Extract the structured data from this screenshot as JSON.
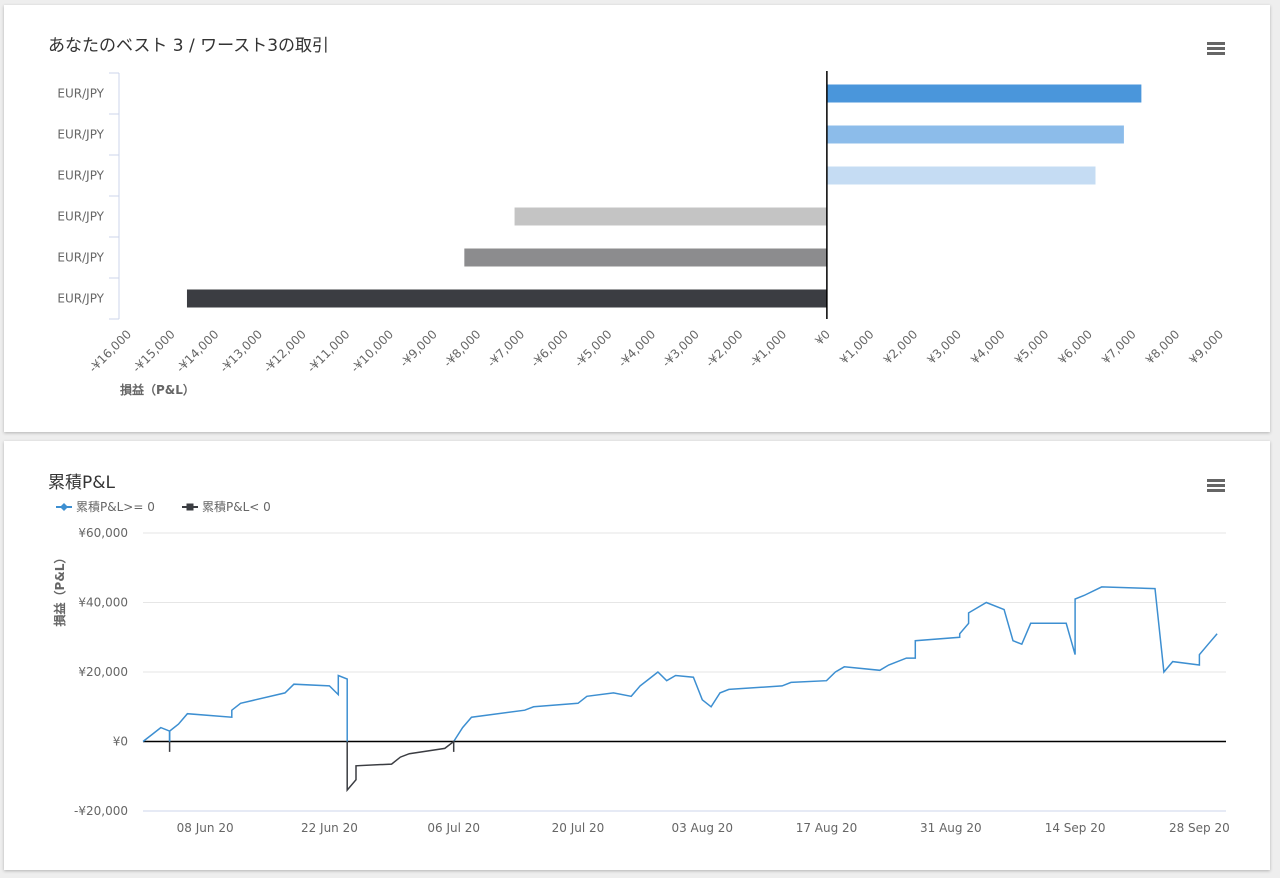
{
  "chart_data": [
    {
      "type": "bar",
      "orientation": "horizontal",
      "title": "あなたのベスト 3 / ワースト3の取引",
      "categories": [
        "EUR/JPY",
        "EUR/JPY",
        "EUR/JPY",
        "EUR/JPY",
        "EUR/JPY",
        "EUR/JPY"
      ],
      "values": [
        7200,
        6800,
        6150,
        -7150,
        -8300,
        -14650
      ],
      "colors": [
        "#4a96db",
        "#8cbcea",
        "#c5dcf3",
        "#c4c4c4",
        "#8c8c8e",
        "#3b3d42"
      ],
      "xlabel": "損益（P&L）",
      "xlim": [
        -16000,
        9000
      ],
      "xticks": [
        {
          "value": -16000,
          "label": "-¥16,000"
        },
        {
          "value": -15000,
          "label": "-¥15,000"
        },
        {
          "value": -14000,
          "label": "-¥14,000"
        },
        {
          "value": -13000,
          "label": "-¥13,000"
        },
        {
          "value": -12000,
          "label": "-¥12,000"
        },
        {
          "value": -11000,
          "label": "-¥11,000"
        },
        {
          "value": -10000,
          "label": "-¥10,000"
        },
        {
          "value": -9000,
          "label": "-¥9,000"
        },
        {
          "value": -8000,
          "label": "-¥8,000"
        },
        {
          "value": -7000,
          "label": "-¥7,000"
        },
        {
          "value": -6000,
          "label": "-¥6,000"
        },
        {
          "value": -5000,
          "label": "-¥5,000"
        },
        {
          "value": -4000,
          "label": "-¥4,000"
        },
        {
          "value": -3000,
          "label": "-¥3,000"
        },
        {
          "value": -2000,
          "label": "-¥2,000"
        },
        {
          "value": -1000,
          "label": "-¥1,000"
        },
        {
          "value": 0,
          "label": "¥0"
        },
        {
          "value": 1000,
          "label": "¥1,000"
        },
        {
          "value": 2000,
          "label": "¥2,000"
        },
        {
          "value": 3000,
          "label": "¥3,000"
        },
        {
          "value": 4000,
          "label": "¥4,000"
        },
        {
          "value": 5000,
          "label": "¥5,000"
        },
        {
          "value": 6000,
          "label": "¥6,000"
        },
        {
          "value": 7000,
          "label": "¥7,000"
        },
        {
          "value": 8000,
          "label": "¥8,000"
        },
        {
          "value": 9000,
          "label": "¥9,000"
        }
      ]
    },
    {
      "type": "line",
      "title": "累積P&L",
      "ylabel": "損益（P&L）",
      "legend": "top-left",
      "grid": true,
      "x": [
        "2020-06-01",
        "2020-06-02",
        "2020-06-03",
        "2020-06-04",
        "2020-06-04",
        "2020-06-04",
        "2020-06-04",
        "2020-06-04",
        "2020-06-05",
        "2020-06-06",
        "2020-06-11",
        "2020-06-11",
        "2020-06-12",
        "2020-06-17",
        "2020-06-18",
        "2020-06-22",
        "2020-06-23",
        "2020-06-23",
        "2020-06-24",
        "2020-06-24",
        "2020-06-24",
        "2020-06-25",
        "2020-06-25",
        "2020-06-29",
        "2020-06-30",
        "2020-07-01",
        "2020-07-05",
        "2020-07-06",
        "2020-07-06",
        "2020-07-06",
        "2020-07-07",
        "2020-07-08",
        "2020-07-14",
        "2020-07-15",
        "2020-07-20",
        "2020-07-21",
        "2020-07-24",
        "2020-07-26",
        "2020-07-27",
        "2020-07-28",
        "2020-07-29",
        "2020-07-30",
        "2020-07-31",
        "2020-08-02",
        "2020-08-03",
        "2020-08-04",
        "2020-08-05",
        "2020-08-06",
        "2020-08-12",
        "2020-08-13",
        "2020-08-17",
        "2020-08-18",
        "2020-08-19",
        "2020-08-23",
        "2020-08-24",
        "2020-08-26",
        "2020-08-27",
        "2020-08-27",
        "2020-09-01",
        "2020-09-01",
        "2020-09-02",
        "2020-09-02",
        "2020-09-04",
        "2020-09-06",
        "2020-09-07",
        "2020-09-08",
        "2020-09-09",
        "2020-09-13",
        "2020-09-14",
        "2020-09-14",
        "2020-09-15",
        "2020-09-17",
        "2020-09-23",
        "2020-09-24",
        "2020-09-25",
        "2020-09-28",
        "2020-09-28",
        "2020-09-29",
        "2020-09-30"
      ],
      "series": [
        {
          "name": "累積P&L>= 0",
          "color": "#3d8fd1",
          "marker": "diamond",
          "values": [
            0,
            2000,
            4000,
            3000,
            0,
            null,
            0,
            3000,
            5000,
            8000,
            7000,
            9000,
            11000,
            14000,
            16500,
            16000,
            13500,
            19000,
            18000,
            0,
            null,
            null,
            null,
            null,
            null,
            null,
            null,
            0,
            null,
            0,
            4000,
            7000,
            9000,
            10000,
            11000,
            13000,
            14000,
            13000,
            16000,
            18000,
            20000,
            17500,
            19000,
            18500,
            12000,
            10000,
            14000,
            15000,
            16000,
            17000,
            17500,
            20000,
            21500,
            20500,
            22000,
            24000,
            24000,
            29000,
            30000,
            31000,
            34000,
            37000,
            40000,
            38000,
            29000,
            28000,
            34000,
            34000,
            25000,
            41000,
            42000,
            44500,
            44000,
            20000,
            23000,
            22000,
            25000,
            28000,
            31000
          ]
        },
        {
          "name": "累積P&L< 0",
          "color": "#3b3d42",
          "marker": "square",
          "values": [
            null,
            null,
            null,
            null,
            0,
            -3000,
            0,
            null,
            null,
            null,
            null,
            null,
            null,
            null,
            null,
            null,
            null,
            null,
            null,
            0,
            -14000,
            -11000,
            -7000,
            -6500,
            -4500,
            -3500,
            -2000,
            0,
            -3000,
            0,
            null,
            null,
            null,
            null,
            null,
            null,
            null,
            null,
            null,
            null,
            null,
            null,
            null,
            null,
            null,
            null,
            null,
            null,
            null,
            null,
            null,
            null,
            null,
            null,
            null,
            null,
            null,
            null,
            null,
            null,
            null,
            null,
            null,
            null,
            null,
            null,
            null,
            null,
            null,
            null,
            null,
            null,
            null,
            null,
            null,
            null,
            null,
            null,
            null
          ]
        }
      ],
      "xlim": [
        "2020-06-01",
        "2020-10-01"
      ],
      "xticks": [
        {
          "value": "2020-06-08",
          "label": "08 Jun 20"
        },
        {
          "value": "2020-06-22",
          "label": "22 Jun 20"
        },
        {
          "value": "2020-07-06",
          "label": "06 Jul 20"
        },
        {
          "value": "2020-07-20",
          "label": "20 Jul 20"
        },
        {
          "value": "2020-08-03",
          "label": "03 Aug 20"
        },
        {
          "value": "2020-08-17",
          "label": "17 Aug 20"
        },
        {
          "value": "2020-08-31",
          "label": "31 Aug 20"
        },
        {
          "value": "2020-09-14",
          "label": "14 Sep 20"
        },
        {
          "value": "2020-09-28",
          "label": "28 Sep 20"
        }
      ],
      "ylim": [
        -20000,
        60000
      ],
      "yticks": [
        {
          "value": -20000,
          "label": "-¥20,000"
        },
        {
          "value": 0,
          "label": "¥0"
        },
        {
          "value": 20000,
          "label": "¥20,000"
        },
        {
          "value": 40000,
          "label": "¥40,000"
        },
        {
          "value": 60000,
          "label": "¥60,000"
        }
      ]
    }
  ]
}
